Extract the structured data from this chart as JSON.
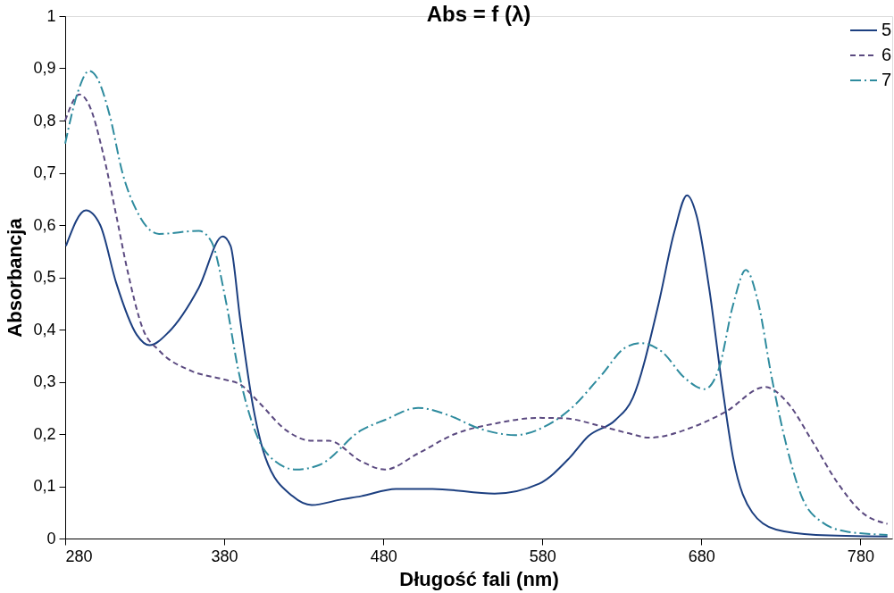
{
  "chart_data": {
    "type": "line",
    "title": "Abs = f (λ)",
    "xlabel": "Długość fali (nm)",
    "ylabel": "Absorbancja",
    "xlim": [
      280,
      800
    ],
    "xticks": [
      280,
      380,
      480,
      580,
      680,
      780
    ],
    "ylim": [
      0,
      1
    ],
    "yticks": [
      0,
      {
        "value": 0.1,
        "label": "0,1"
      },
      {
        "value": 0.2,
        "label": "0,2"
      },
      {
        "value": 0.3,
        "label": "0,3"
      },
      {
        "value": 0.4,
        "label": "0,4"
      },
      {
        "value": 0.5,
        "label": "0,5"
      },
      {
        "value": 0.6,
        "label": "0,6"
      },
      {
        "value": 0.7,
        "label": "0,7"
      },
      {
        "value": 0.8,
        "label": "0,8"
      },
      {
        "value": 0.9,
        "label": "0,9"
      },
      1
    ],
    "grid": false,
    "legend": "top right",
    "marker": "none",
    "series": [
      {
        "name": "5",
        "color": "#1c3f80",
        "line_style": "solid",
        "x": [
          280.5,
          293,
          302,
          312,
          325,
          333,
          345,
          364,
          379,
          384,
          390,
          398,
          406,
          423,
          435,
          454,
          466,
          488,
          511,
          550,
          578,
          597,
          609,
          626,
          637,
          653,
          663,
          671,
          677,
          685,
          693,
          700,
          712,
          727,
          752,
          797
        ],
        "values": [
          0.56,
          0.628,
          0.6,
          0.49,
          0.39,
          0.37,
          0.395,
          0.48,
          0.578,
          0.56,
          0.42,
          0.255,
          0.154,
          0.081,
          0.064,
          0.075,
          0.081,
          0.095,
          0.095,
          0.086,
          0.105,
          0.154,
          0.196,
          0.227,
          0.27,
          0.448,
          0.587,
          0.657,
          0.618,
          0.477,
          0.294,
          0.154,
          0.05,
          0.017,
          0.007,
          0.004
        ]
      },
      {
        "name": "6",
        "color": "#5b4a80",
        "line_style": "dashed",
        "x": [
          280,
          289,
          295,
          304,
          312,
          319,
          329,
          339,
          360,
          379,
          390,
          402,
          419,
          435,
          446,
          466,
          481,
          502,
          525,
          550,
          578,
          594,
          617,
          636,
          647,
          676,
          695,
          720,
          735,
          749,
          766,
          781,
          797
        ],
        "values": [
          0.8,
          0.85,
          0.83,
          0.735,
          0.62,
          0.515,
          0.4,
          0.36,
          0.32,
          0.305,
          0.295,
          0.26,
          0.207,
          0.187,
          0.187,
          0.148,
          0.132,
          0.163,
          0.2,
          0.22,
          0.231,
          0.23,
          0.215,
          0.2,
          0.193,
          0.215,
          0.242,
          0.29,
          0.257,
          0.19,
          0.105,
          0.05,
          0.028
        ]
      },
      {
        "name": "7",
        "color": "#2e8b9e",
        "line_style": "dashdot",
        "x": [
          280,
          288,
          295,
          300,
          308,
          316,
          325,
          339,
          364,
          372,
          381,
          389,
          402,
          412,
          425,
          440,
          466,
          481,
          502,
          521,
          540,
          563,
          582,
          597,
          617,
          632,
          642,
          655,
          670,
          682,
          691,
          700,
          708,
          716,
          724,
          734,
          743,
          756,
          772,
          797
        ],
        "values": [
          0.756,
          0.855,
          0.895,
          0.882,
          0.81,
          0.7,
          0.627,
          0.583,
          0.589,
          0.568,
          0.455,
          0.32,
          0.187,
          0.148,
          0.132,
          0.141,
          0.207,
          0.227,
          0.25,
          0.236,
          0.211,
          0.198,
          0.215,
          0.246,
          0.312,
          0.365,
          0.374,
          0.358,
          0.306,
          0.286,
          0.325,
          0.448,
          0.514,
          0.448,
          0.312,
          0.172,
          0.081,
          0.031,
          0.013,
          0.007
        ]
      }
    ]
  }
}
